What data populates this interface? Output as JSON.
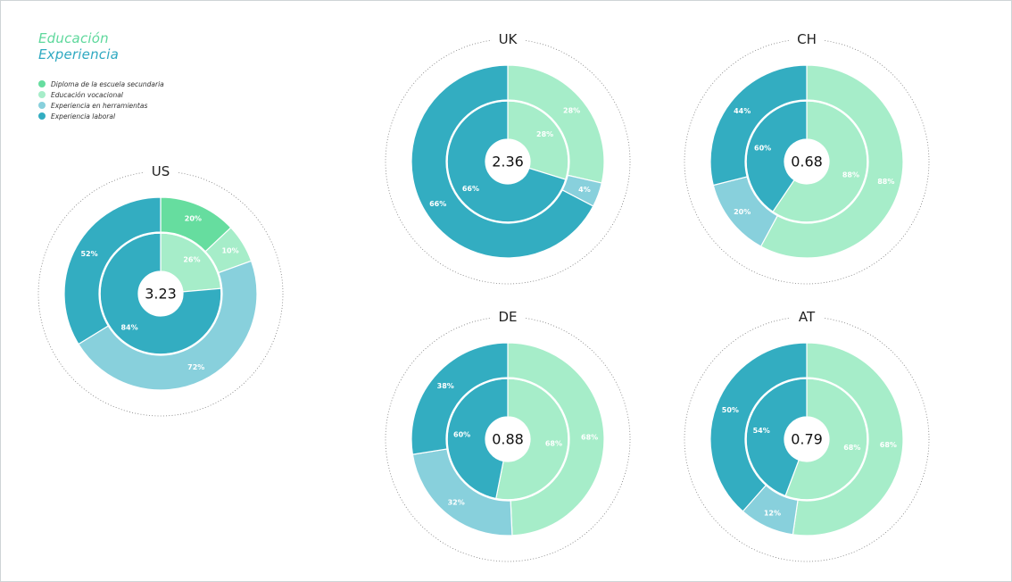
{
  "colors": {
    "diploma": "#66dd9f",
    "vocational": "#a6edc9",
    "tools": "#88d0dc",
    "work": "#33adc1"
  },
  "header": {
    "title_education": "Educación",
    "title_experience": "Experiencia"
  },
  "legend": [
    {
      "label": "Diploma de la escuela secundaria",
      "color_key": "diploma"
    },
    {
      "label": "Educación vocacional",
      "color_key": "vocational"
    },
    {
      "label": "Experiencia en herramientas",
      "color_key": "tools"
    },
    {
      "label": "Experiencia laboral",
      "color_key": "work"
    }
  ],
  "chart_data": [
    {
      "type": "donut",
      "title": "US",
      "center_value": "3.23",
      "outer": [
        {
          "category": "Diploma de la escuela secundaria",
          "value": 20,
          "label": "20%"
        },
        {
          "category": "Educación vocacional",
          "value": 10,
          "label": "10%"
        },
        {
          "category": "Experiencia en herramientas",
          "value": 72,
          "label": "72%"
        },
        {
          "category": "Experiencia laboral",
          "value": 52,
          "label": "52%"
        }
      ],
      "inner": [
        {
          "category": "Educación vocacional",
          "value": 26,
          "label": "26%"
        },
        {
          "category": "Experiencia laboral",
          "value": 84,
          "label": "84%"
        }
      ]
    },
    {
      "type": "donut",
      "title": "UK",
      "center_value": "2.36",
      "outer": [
        {
          "category": "Educación vocacional",
          "value": 28,
          "label": "28%"
        },
        {
          "category": "Experiencia en herramientas",
          "value": 4,
          "label": "4%"
        },
        {
          "category": "Experiencia laboral",
          "value": 66,
          "label": "66%"
        }
      ],
      "inner": [
        {
          "category": "Educación vocacional",
          "value": 28,
          "label": "28%"
        },
        {
          "category": "Experiencia laboral",
          "value": 66,
          "label": "66%"
        }
      ]
    },
    {
      "type": "donut",
      "title": "CH",
      "center_value": "0.68",
      "outer": [
        {
          "category": "Educación vocacional",
          "value": 88,
          "label": "88%"
        },
        {
          "category": "Experiencia en herramientas",
          "value": 20,
          "label": "20%"
        },
        {
          "category": "Experiencia laboral",
          "value": 44,
          "label": "44%"
        }
      ],
      "inner": [
        {
          "category": "Educación vocacional",
          "value": 88,
          "label": "88%"
        },
        {
          "category": "Experiencia laboral",
          "value": 60,
          "label": "60%"
        }
      ]
    },
    {
      "type": "donut",
      "title": "DE",
      "center_value": "0.88",
      "outer": [
        {
          "category": "Educación vocacional",
          "value": 68,
          "label": "68%"
        },
        {
          "category": "Experiencia en herramientas",
          "value": 32,
          "label": "32%"
        },
        {
          "category": "Experiencia laboral",
          "value": 38,
          "label": "38%"
        }
      ],
      "inner": [
        {
          "category": "Educación vocacional",
          "value": 68,
          "label": "68%"
        },
        {
          "category": "Experiencia laboral",
          "value": 60,
          "label": "60%"
        }
      ]
    },
    {
      "type": "donut",
      "title": "AT",
      "center_value": "0.79",
      "outer": [
        {
          "category": "Educación vocacional",
          "value": 68,
          "label": "68%"
        },
        {
          "category": "Experiencia en herramientas",
          "value": 12,
          "label": "12%"
        },
        {
          "category": "Experiencia laboral",
          "value": 50,
          "label": "50%"
        }
      ],
      "inner": [
        {
          "category": "Educación vocacional",
          "value": 68,
          "label": "68%"
        },
        {
          "category": "Experiencia laboral",
          "value": 54,
          "label": "54%"
        }
      ]
    }
  ]
}
